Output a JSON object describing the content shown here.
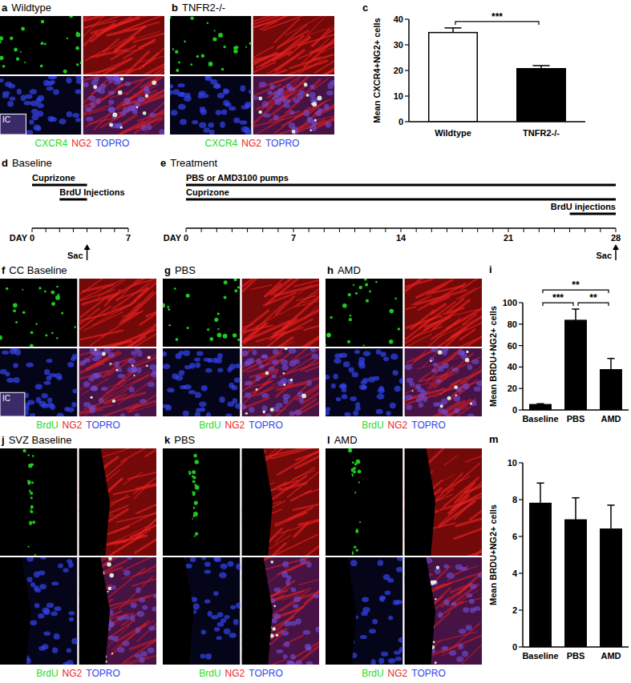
{
  "chart_data": [
    {
      "type": "bar",
      "title": "c",
      "ylabel": "Mean CXCR4+NG2+ cells",
      "categories": [
        "Wildtype",
        "TNFR2-/-"
      ],
      "values": [
        34.8,
        20.7
      ],
      "errors": [
        1.8,
        1.2
      ],
      "colors": [
        "#ffffff",
        "#000000"
      ],
      "ylim": [
        0,
        40
      ],
      "yticks": [
        0,
        10,
        20,
        30,
        40
      ],
      "annotations": [
        {
          "text": "***",
          "between": [
            "Wildtype",
            "TNFR2-/-"
          ]
        }
      ]
    },
    {
      "type": "bar",
      "title": "i",
      "ylabel": "Mean BRDU+NG2+ cells",
      "categories": [
        "Baseline",
        "PBS",
        "AMD"
      ],
      "values": [
        5,
        83.5,
        37.5
      ],
      "errors": [
        0.8,
        10.5,
        10.5
      ],
      "colors": [
        "#000000",
        "#000000",
        "#000000"
      ],
      "ylim": [
        0,
        100
      ],
      "yticks": [
        0,
        20,
        40,
        60,
        80,
        100
      ],
      "annotations": [
        {
          "text": "***",
          "between": [
            "Baseline",
            "PBS"
          ]
        },
        {
          "text": "**",
          "between": [
            "PBS",
            "AMD"
          ]
        },
        {
          "text": "**",
          "between": [
            "Baseline",
            "AMD"
          ]
        }
      ]
    },
    {
      "type": "bar",
      "title": "m",
      "ylabel": "Mean BRDU+NG2+ cells",
      "categories": [
        "Baseline",
        "PBS",
        "AMD"
      ],
      "values": [
        7.8,
        6.9,
        6.4
      ],
      "errors": [
        1.1,
        1.2,
        1.3
      ],
      "colors": [
        "#000000",
        "#000000",
        "#000000"
      ],
      "ylim": [
        0,
        10
      ],
      "yticks": [
        0,
        2,
        4,
        6,
        8,
        10
      ]
    }
  ],
  "stain_colors": [
    "#22dd22",
    "#ee2222",
    "#3344ee"
  ],
  "panels": {
    "a": {
      "label": "a",
      "title": "Wildtype",
      "inset": "IC",
      "stains": [
        "CXCR4",
        "NG2",
        "TOPRO"
      ]
    },
    "b": {
      "label": "b",
      "title": "TNFR2-/-",
      "stains": [
        "CXCR4",
        "NG2",
        "TOPRO"
      ]
    },
    "f": {
      "label": "f",
      "title": "CC Baseline",
      "inset": "IC",
      "stains": [
        "BrdU",
        "NG2",
        "TOPRO"
      ]
    },
    "g": {
      "label": "g",
      "title": "PBS",
      "stains": [
        "BrdU",
        "NG2",
        "TOPRO"
      ]
    },
    "h": {
      "label": "h",
      "title": "AMD",
      "stains": [
        "BrdU",
        "NG2",
        "TOPRO"
      ]
    },
    "j": {
      "label": "j",
      "title": "SVZ Baseline",
      "stains": [
        "BrdU",
        "NG2",
        "TOPRO"
      ]
    },
    "k": {
      "label": "k",
      "title": "PBS",
      "stains": [
        "BrdU",
        "NG2",
        "TOPRO"
      ]
    },
    "l": {
      "label": "l",
      "title": "AMD",
      "stains": [
        "BrdU",
        "NG2",
        "TOPRO"
      ]
    }
  },
  "timelines": {
    "d": {
      "label": "d",
      "title": "Baseline",
      "axis_label": "DAY",
      "range": [
        0,
        7
      ],
      "tick_labels": [
        0,
        7
      ],
      "bars": [
        {
          "text": "Cuprizone",
          "start": 0,
          "end": 4
        },
        {
          "text": "BrdU Injections",
          "start": 2,
          "end": 4
        }
      ],
      "end_marker": {
        "text": "Sac",
        "day": 4
      }
    },
    "e": {
      "label": "e",
      "title": "Treatment",
      "axis_label": "DAY",
      "range": [
        0,
        28
      ],
      "tick_labels": [
        0,
        7,
        14,
        21,
        28
      ],
      "bars": [
        {
          "text": "PBS or AMD3100 pumps",
          "start": 0,
          "end": 28
        },
        {
          "text": "Cuprizone",
          "start": 0,
          "end": 28
        },
        {
          "text": "BrdU injections",
          "start": 25,
          "end": 28
        }
      ],
      "end_marker": {
        "text": "Sac",
        "day": 28
      }
    }
  }
}
